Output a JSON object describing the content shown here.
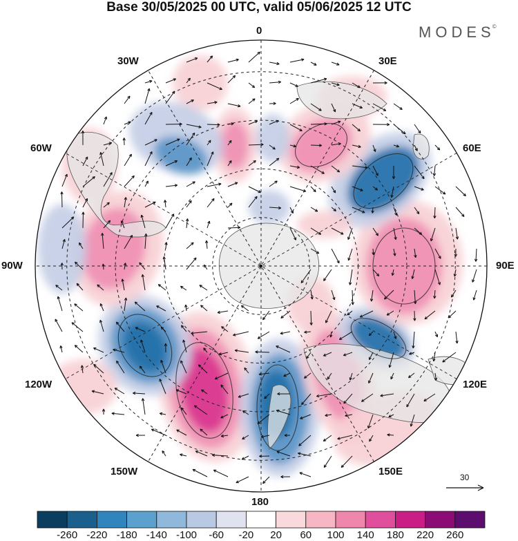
{
  "title": "Base 30/05/2025 00 UTC, valid 05/06/2025 12 UTC",
  "brand": "MODES",
  "brand_mark": "©",
  "longitude_labels": {
    "top": "0",
    "ne": "30E",
    "nw": "30W",
    "ene": "60E",
    "wnw": "60W",
    "east": "90E",
    "west": "90W",
    "ese": "120E",
    "wsw": "120W",
    "se": "150E",
    "sw": "150W",
    "bottom": "180"
  },
  "reference_vector_label": "30",
  "colorbar": {
    "colors": [
      "#0b3d5e",
      "#1b5f8d",
      "#3085bd",
      "#5aa2cd",
      "#8fb8da",
      "#b9c9e4",
      "#e0e2f0",
      "#ffffff",
      "#f9d9dc",
      "#f6b6c4",
      "#ef86ab",
      "#e04f9b",
      "#c81e86",
      "#8b0c75",
      "#5d0d6e"
    ],
    "tick_labels": [
      "-260",
      "-220",
      "-180",
      "-140",
      "-100",
      "-60",
      "-20",
      "20",
      "60",
      "100",
      "140",
      "180",
      "220",
      "260"
    ]
  },
  "anomaly_colors": {
    "strong_neg": "#1f6fa8",
    "mid_neg": "#5a95c7",
    "weak_neg": "#c3cde6",
    "weak_pos": "#f7cfd4",
    "mid_pos": "#f08fb2",
    "strong_pos": "#d8338f",
    "land": "#e6e6e6"
  }
}
